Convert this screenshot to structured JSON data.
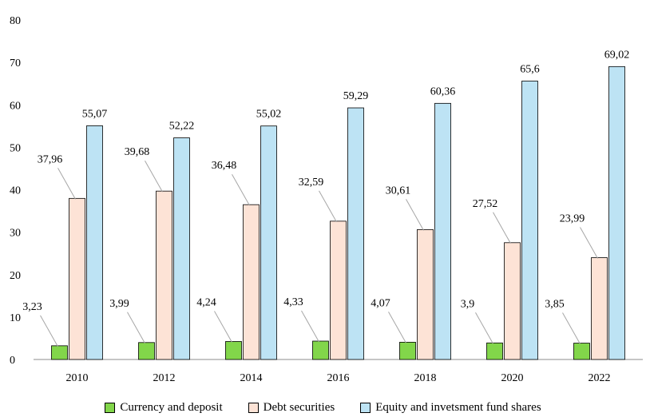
{
  "chart_data": {
    "type": "bar",
    "categories": [
      "2010",
      "2012",
      "2014",
      "2016",
      "2018",
      "2020",
      "2022"
    ],
    "series": [
      {
        "name": "Currency and deposit",
        "values": [
          3.23,
          3.99,
          4.24,
          4.33,
          4.07,
          3.9,
          3.85
        ],
        "labels": [
          "3,23",
          "3,99",
          "4,24",
          "4,33",
          "4,07",
          "3,9",
          "3,85"
        ],
        "color": "#82d64a"
      },
      {
        "name": "Debt securities",
        "values": [
          37.96,
          39.68,
          36.48,
          32.59,
          30.61,
          27.52,
          23.99
        ],
        "labels": [
          "37,96",
          "39,68",
          "36,48",
          "32,59",
          "30,61",
          "27,52",
          "23,99"
        ],
        "color": "#fde3d6"
      },
      {
        "name": "Equity and invetsment fund shares",
        "values": [
          55.07,
          52.22,
          55.02,
          59.29,
          60.36,
          65.6,
          69.02
        ],
        "labels": [
          "55,07",
          "52,22",
          "55,02",
          "59,29",
          "60,36",
          "65,6",
          "69,02"
        ],
        "color": "#bde3f4"
      }
    ],
    "yticks": [
      "0",
      "10",
      "20",
      "30",
      "40",
      "50",
      "60",
      "70",
      "80"
    ],
    "ylim": [
      0,
      80
    ],
    "grid": false,
    "legend_position": "bottom",
    "title": "",
    "xlabel": "",
    "ylabel": ""
  }
}
